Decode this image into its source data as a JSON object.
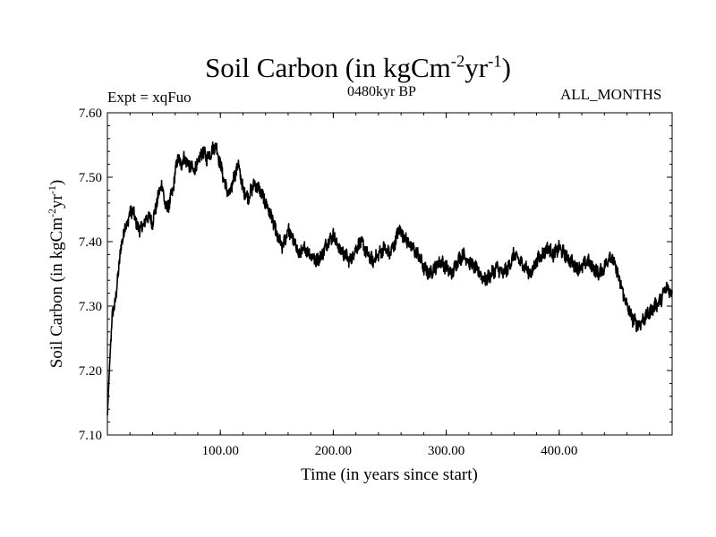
{
  "header": {
    "title_main": "Soil Carbon (in kgCm",
    "title_sup1": "-2",
    "title_mid": "yr",
    "title_sup2": "-1",
    "title_end": ")",
    "expt_label": "Expt = xqFuo",
    "period_label": "0480kyr BP",
    "months_label": "ALL_MONTHS"
  },
  "chart_data": {
    "type": "line",
    "title": "Soil Carbon (in kgCm-2yr-1)",
    "xlabel": "Time (in years since start)",
    "ylabel_main": "Soil Carbon (in kgCm",
    "ylabel_sup1": "-2",
    "ylabel_mid": "yr",
    "ylabel_sup2": "-1",
    "ylabel_end": ")",
    "xlim": [
      0,
      500
    ],
    "ylim": [
      7.1,
      7.6
    ],
    "x_ticks": [
      100,
      200,
      300,
      400
    ],
    "x_tick_labels": [
      "100.00",
      "200.00",
      "300.00",
      "400.00"
    ],
    "y_ticks": [
      7.1,
      7.2,
      7.3,
      7.4,
      7.5,
      7.6
    ],
    "y_tick_labels": [
      "7.10",
      "7.20",
      "7.30",
      "7.40",
      "7.50",
      "7.60"
    ],
    "grid": false,
    "series": [
      {
        "name": "Soil Carbon",
        "x": [
          0,
          2,
          4,
          6,
          8,
          10,
          12,
          15,
          18,
          21,
          24,
          27,
          30,
          33,
          36,
          40,
          45,
          48,
          52,
          55,
          58,
          62,
          65,
          68,
          72,
          76,
          80,
          84,
          88,
          92,
          96,
          100,
          104,
          108,
          112,
          116,
          120,
          125,
          130,
          135,
          140,
          145,
          150,
          155,
          160,
          165,
          170,
          175,
          180,
          185,
          190,
          195,
          200,
          205,
          210,
          215,
          220,
          225,
          230,
          235,
          240,
          245,
          250,
          255,
          258,
          262,
          266,
          270,
          275,
          280,
          285,
          290,
          295,
          300,
          305,
          310,
          315,
          320,
          325,
          330,
          335,
          340,
          345,
          350,
          355,
          360,
          365,
          370,
          375,
          380,
          385,
          390,
          395,
          400,
          405,
          410,
          415,
          420,
          425,
          430,
          435,
          440,
          445,
          450,
          455,
          460,
          465,
          470,
          475,
          480,
          485,
          490,
          495,
          500
        ],
        "values": [
          7.13,
          7.21,
          7.28,
          7.3,
          7.32,
          7.36,
          7.39,
          7.42,
          7.43,
          7.45,
          7.44,
          7.42,
          7.42,
          7.43,
          7.44,
          7.43,
          7.47,
          7.49,
          7.45,
          7.46,
          7.48,
          7.53,
          7.52,
          7.53,
          7.52,
          7.51,
          7.52,
          7.54,
          7.53,
          7.54,
          7.55,
          7.52,
          7.49,
          7.47,
          7.5,
          7.52,
          7.48,
          7.47,
          7.49,
          7.48,
          7.46,
          7.44,
          7.41,
          7.39,
          7.42,
          7.4,
          7.38,
          7.39,
          7.38,
          7.37,
          7.38,
          7.4,
          7.41,
          7.39,
          7.38,
          7.37,
          7.39,
          7.4,
          7.38,
          7.37,
          7.38,
          7.39,
          7.38,
          7.4,
          7.42,
          7.41,
          7.4,
          7.39,
          7.38,
          7.36,
          7.35,
          7.36,
          7.37,
          7.36,
          7.35,
          7.37,
          7.38,
          7.37,
          7.36,
          7.35,
          7.34,
          7.35,
          7.36,
          7.35,
          7.36,
          7.38,
          7.37,
          7.36,
          7.35,
          7.37,
          7.38,
          7.39,
          7.38,
          7.39,
          7.38,
          7.37,
          7.36,
          7.36,
          7.37,
          7.36,
          7.35,
          7.36,
          7.38,
          7.36,
          7.33,
          7.3,
          7.28,
          7.27,
          7.28,
          7.29,
          7.3,
          7.31,
          7.33,
          7.32
        ]
      }
    ]
  }
}
